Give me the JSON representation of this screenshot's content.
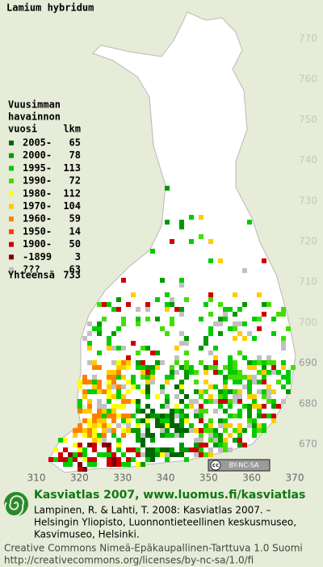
{
  "title": "Lamium hybridum",
  "legend": {
    "heading": [
      "Vuusimman",
      "havainnon",
      "vuosi"
    ],
    "count_header": "lkm",
    "entries": [
      {
        "label": "2005-",
        "count": 65,
        "color": "#006600"
      },
      {
        "label": "2000-",
        "count": 78,
        "color": "#009900"
      },
      {
        "label": "1995-",
        "count": 113,
        "color": "#00cc00"
      },
      {
        "label": "1990-",
        "count": 72,
        "color": "#44dd00"
      },
      {
        "label": "1980-",
        "count": 112,
        "color": "#ffff00"
      },
      {
        "label": "1970-",
        "count": 104,
        "color": "#ffcc00"
      },
      {
        "label": "1960-",
        "count": 59,
        "color": "#ff8000"
      },
      {
        "label": "1950-",
        "count": 14,
        "color": "#ff4000"
      },
      {
        "label": "1900-",
        "count": 50,
        "color": "#cc0000"
      },
      {
        "label": "-1899",
        "count": 3,
        "color": "#800000"
      },
      {
        "label": "???",
        "count": 63,
        "color": "#c0c0c0"
      }
    ],
    "total": {
      "label": "Yhteensä",
      "count": 733
    }
  },
  "map_grid": {
    "yticks": [
      770,
      760,
      750,
      740,
      730,
      720,
      710,
      700,
      690,
      680,
      670
    ],
    "xticks": [
      310,
      320,
      330,
      340,
      350,
      360,
      370
    ]
  },
  "badge": {
    "cc": "cc",
    "license": "BY-NC-SA"
  },
  "footer": {
    "title": "Kasviatlas 2007, www.luomus.fi/kasviatlas",
    "citation": [
      "Lampinen, R. & Lahti, T. 2008: Kasviatlas 2007. –",
      "Helsingin Yliopisto, Luonnontieteellinen keskusmuseo,",
      "Kasvimuseo, Helsinki."
    ],
    "license": [
      "Creative Commons Nimeä-Epäkaupallinen-Tarttuva 1.0 Suomi",
      "http://creativecommons.org/licenses/by-nc-sa/1.0/fi"
    ]
  }
}
